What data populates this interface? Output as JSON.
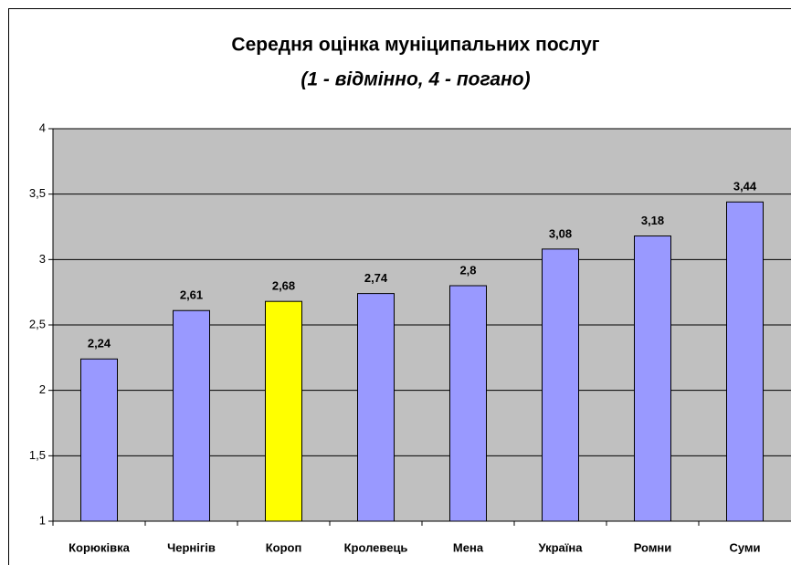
{
  "chart_data": {
    "type": "bar",
    "title": "Середня оцінка муніципальних послуг",
    "subtitle": "(1 - відмінно, 4 - погано)",
    "categories": [
      "Корюківка",
      "Чернігів",
      "Короп",
      "Кролевець",
      "Мена",
      "Україна",
      "Ромни",
      "Суми"
    ],
    "values": [
      2.24,
      2.61,
      2.68,
      2.74,
      2.8,
      3.08,
      3.18,
      3.44
    ],
    "value_labels": [
      "2,24",
      "2,61",
      "2,68",
      "2,74",
      "2,8",
      "3,08",
      "3,18",
      "3,44"
    ],
    "colors": [
      "#9999ff",
      "#9999ff",
      "#ffff00",
      "#9999ff",
      "#9999ff",
      "#9999ff",
      "#9999ff",
      "#9999ff"
    ],
    "ylim": [
      1,
      4
    ],
    "yticks": [
      1,
      {
        "value": 1.5,
        "label": "1,5"
      },
      2,
      {
        "value": 2.5,
        "label": "2,5"
      },
      3,
      {
        "value": 3.5,
        "label": "3,5"
      },
      4
    ],
    "grid": true
  }
}
